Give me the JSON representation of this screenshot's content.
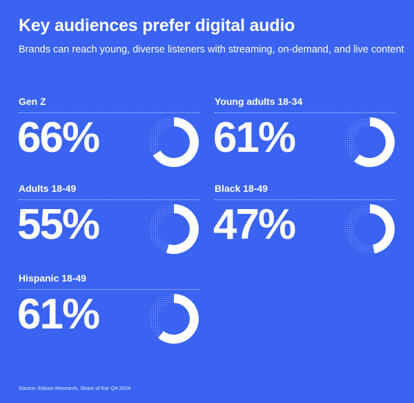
{
  "header": {
    "title": "Key audiences prefer digital audio",
    "subtitle": "Brands can reach young, diverse listeners with streaming, on-demand, and live content"
  },
  "footer": {
    "source": "Source: Edison Research, Share of Ear Q4 2024"
  },
  "colors": {
    "background": "#3a63f1",
    "foreground": "#ffffff"
  },
  "chart_data": {
    "type": "pie",
    "title": "Key audiences prefer digital audio",
    "subtitle": "Brands can reach young, diverse listeners with streaming, on-demand, and live content",
    "unit": "%",
    "categories": [
      "Gen Z",
      "Young adults 18-34",
      "Adults 18-49",
      "Black 18-49",
      "Hispanic 18-49"
    ],
    "values": [
      66,
      61,
      55,
      47,
      61
    ],
    "value_labels": [
      "66%",
      "61%",
      "55%",
      "47%",
      "61%"
    ]
  }
}
